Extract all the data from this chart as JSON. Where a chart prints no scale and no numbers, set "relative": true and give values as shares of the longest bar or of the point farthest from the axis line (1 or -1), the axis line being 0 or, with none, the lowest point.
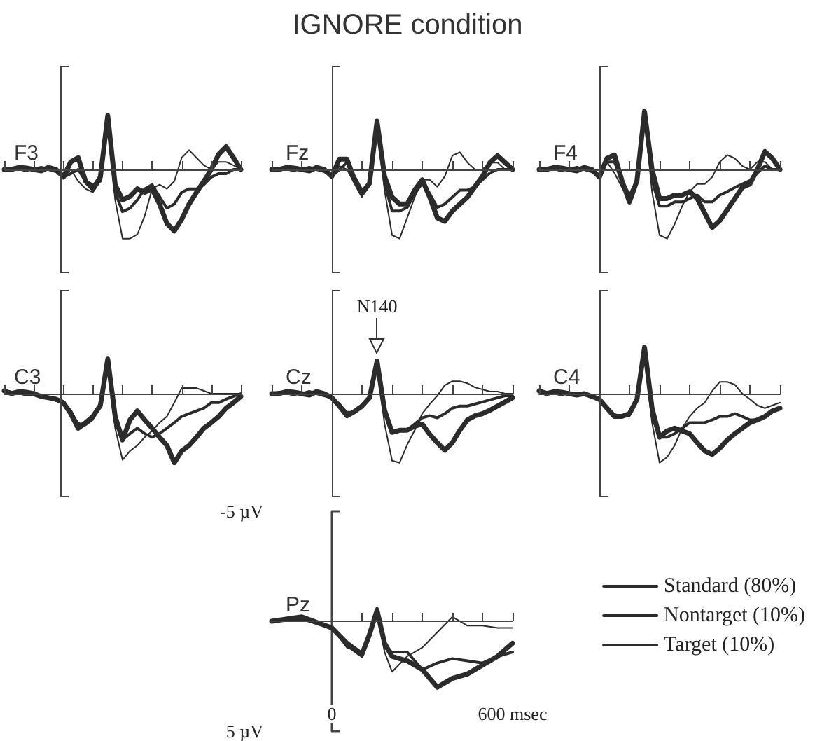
{
  "chart_data": [
    {
      "type": "other",
      "title": "IGNORE condition"
    },
    {
      "type": "line",
      "title": "F3",
      "marker": "none",
      "relative": true,
      "categories": [
        null,
        null,
        null,
        null,
        null,
        null,
        null,
        null,
        null,
        null,
        null,
        null,
        null,
        null,
        null,
        null,
        null,
        null,
        null,
        null,
        null,
        null,
        null,
        null,
        null,
        null,
        null,
        null,
        null,
        null,
        null,
        null,
        null
      ],
      "series": [
        {
          "color": "#2b2b2b",
          "values": [
            0,
            0.03,
            0,
            -0.03,
            0.02,
            0,
            0.03,
            -0.02,
            -0.11,
            0,
            -0.17,
            -0.28,
            -0.33,
            -0.17,
            0.67,
            -0.44,
            -1,
            -1,
            -0.94,
            -0.67,
            -0.28,
            -0.22,
            -0.28,
            -0.17,
            0.17,
            0.28,
            0.17,
            0.06,
            0,
            0.11,
            0.11,
            0.06,
            0
          ]
        },
        {
          "color": "#2b2b2b",
          "values": [
            0,
            0.02,
            0.03,
            0,
            0,
            0.03,
            0,
            -0.03,
            -0.11,
            -0.06,
            0,
            -0.17,
            -0.22,
            -0.17,
            0.72,
            -0.33,
            -0.61,
            -0.56,
            -0.44,
            -0.28,
            -0.22,
            -0.39,
            -0.56,
            -0.5,
            -0.33,
            -0.28,
            -0.28,
            -0.22,
            -0.11,
            -0.06,
            -0.06,
            0,
            0
          ]
        },
        {
          "color": "#2b2b2b",
          "values": [
            0,
            0,
            0.03,
            0.02,
            0,
            -0.02,
            0.03,
            0,
            -0.11,
            0.11,
            0.17,
            -0.17,
            -0.28,
            -0.11,
            0.78,
            -0.22,
            -0.44,
            -0.39,
            -0.28,
            -0.33,
            -0.28,
            -0.5,
            -0.78,
            -0.89,
            -0.72,
            -0.5,
            -0.33,
            -0.17,
            0,
            0.22,
            0.33,
            0.17,
            0
          ]
        }
      ]
    },
    {
      "type": "line",
      "title": "Fz",
      "marker": "none",
      "relative": true,
      "categories": [
        null,
        null,
        null,
        null,
        null,
        null,
        null,
        null,
        null,
        null,
        null,
        null,
        null,
        null,
        null,
        null,
        null,
        null,
        null,
        null,
        null,
        null,
        null,
        null,
        null,
        null,
        null,
        null,
        null,
        null,
        null,
        null,
        null
      ],
      "series": [
        {
          "color": "#2b2b2b",
          "values": [
            0,
            0.03,
            0,
            -0.03,
            0.02,
            0,
            0.03,
            -0.02,
            -0.1,
            0.05,
            0,
            -0.2,
            -0.4,
            -0.15,
            0.65,
            -0.3,
            -0.95,
            -1,
            -0.7,
            -0.4,
            -0.15,
            -0.15,
            -0.25,
            -0.1,
            0.2,
            0.25,
            0.1,
            0,
            0,
            0.1,
            0.1,
            0,
            0
          ]
        },
        {
          "color": "#2b2b2b",
          "values": [
            0,
            0.02,
            0.03,
            0,
            0,
            0.03,
            0,
            -0.03,
            -0.1,
            0,
            0.1,
            -0.1,
            -0.3,
            -0.2,
            0.65,
            -0.2,
            -0.6,
            -0.6,
            -0.55,
            -0.35,
            -0.2,
            -0.35,
            -0.55,
            -0.5,
            -0.4,
            -0.3,
            -0.3,
            -0.25,
            -0.15,
            -0.05,
            0,
            0,
            0
          ]
        },
        {
          "color": "#2b2b2b",
          "values": [
            0,
            0,
            0.03,
            0.02,
            0,
            -0.02,
            0.03,
            0,
            -0.1,
            0.15,
            0.15,
            -0.15,
            -0.35,
            -0.2,
            0.7,
            -0.1,
            -0.4,
            -0.5,
            -0.5,
            -0.3,
            -0.15,
            -0.4,
            -0.7,
            -0.75,
            -0.6,
            -0.5,
            -0.4,
            -0.25,
            -0.1,
            0.1,
            0.2,
            0.1,
            0
          ]
        }
      ]
    },
    {
      "type": "line",
      "title": "F4",
      "marker": "none",
      "relative": true,
      "categories": [
        null,
        null,
        null,
        null,
        null,
        null,
        null,
        null,
        null,
        null,
        null,
        null,
        null,
        null,
        null,
        null,
        null,
        null,
        null,
        null,
        null,
        null,
        null,
        null,
        null,
        null,
        null,
        null,
        null,
        null,
        null,
        null,
        null
      ],
      "series": [
        {
          "color": "#2b2b2b",
          "values": [
            0,
            0.03,
            0,
            -0.03,
            0.02,
            0,
            0.03,
            -0.02,
            -0.11,
            0.11,
            -0.05,
            -0.26,
            -0.42,
            -0.11,
            0.79,
            -0.32,
            -0.95,
            -1,
            -0.79,
            -0.53,
            -0.32,
            -0.21,
            -0.21,
            -0.11,
            0.11,
            0.21,
            0.16,
            0.05,
            0,
            0.11,
            0.11,
            0,
            0
          ]
        },
        {
          "color": "#2b2b2b",
          "values": [
            0,
            0.02,
            0.03,
            0,
            0,
            0.03,
            0,
            -0.03,
            -0.11,
            0.11,
            0.11,
            -0.16,
            -0.37,
            -0.16,
            0.79,
            -0.16,
            -0.53,
            -0.53,
            -0.47,
            -0.47,
            -0.42,
            -0.37,
            -0.47,
            -0.47,
            -0.37,
            -0.32,
            -0.26,
            -0.21,
            -0.16,
            -0.05,
            0.05,
            0,
            0
          ]
        },
        {
          "color": "#2b2b2b",
          "values": [
            0,
            0,
            0.03,
            0.02,
            0,
            -0.02,
            0.03,
            0,
            -0.11,
            0.16,
            0.21,
            -0.16,
            -0.47,
            -0.16,
            0.84,
            0,
            -0.42,
            -0.42,
            -0.37,
            -0.37,
            -0.32,
            -0.42,
            -0.63,
            -0.84,
            -0.74,
            -0.58,
            -0.42,
            -0.26,
            -0.21,
            0,
            0.26,
            0.16,
            0
          ]
        }
      ]
    },
    {
      "type": "line",
      "title": "C3",
      "marker": "none",
      "relative": true,
      "categories": [
        null,
        null,
        null,
        null,
        null,
        null,
        null,
        null,
        null,
        null,
        null,
        null,
        null,
        null,
        null,
        null,
        null,
        null,
        null,
        null,
        null,
        null,
        null,
        null,
        null,
        null,
        null,
        null,
        null,
        null,
        null,
        null,
        null
      ],
      "series": [
        {
          "color": "#2b2b2b",
          "values": [
            0.04,
            0.03,
            0,
            -0.03,
            0,
            -0.04,
            -0.06,
            -0.08,
            -0.13,
            -0.25,
            -0.42,
            -0.46,
            -0.38,
            -0.13,
            0.5,
            -0.5,
            -0.96,
            -0.83,
            -0.75,
            -0.63,
            -0.54,
            -0.42,
            -0.33,
            -0.13,
            0.08,
            0.08,
            0.08,
            0.04,
            0,
            0,
            0,
            0,
            0
          ]
        },
        {
          "color": "#2b2b2b",
          "values": [
            0.04,
            0.02,
            0.03,
            0,
            -0.02,
            -0.04,
            -0.06,
            -0.1,
            -0.13,
            -0.25,
            -0.46,
            -0.42,
            -0.33,
            -0.17,
            0.46,
            -0.42,
            -0.67,
            -0.58,
            -0.5,
            -0.58,
            -0.63,
            -0.58,
            -0.5,
            -0.42,
            -0.33,
            -0.29,
            -0.25,
            -0.21,
            -0.13,
            -0.13,
            -0.08,
            -0.04,
            0
          ]
        },
        {
          "color": "#2b2b2b",
          "values": [
            0.04,
            0,
            0.03,
            0.02,
            0,
            -0.04,
            -0.06,
            -0.08,
            -0.13,
            -0.29,
            -0.5,
            -0.42,
            -0.33,
            -0.17,
            0.5,
            -0.33,
            -0.67,
            -0.38,
            -0.25,
            -0.38,
            -0.5,
            -0.63,
            -0.75,
            -1,
            -0.83,
            -0.75,
            -0.63,
            -0.5,
            -0.42,
            -0.33,
            -0.21,
            -0.13,
            -0.04
          ]
        }
      ]
    },
    {
      "type": "line",
      "title": "Cz",
      "marker": "none",
      "relative": true,
      "annotations": [
        "N140"
      ],
      "categories": [
        null,
        null,
        null,
        null,
        null,
        null,
        null,
        null,
        null,
        null,
        null,
        null,
        null,
        null,
        null,
        null,
        null,
        null,
        null,
        null,
        null,
        null,
        null,
        null,
        null,
        null,
        null,
        null,
        null,
        null,
        null,
        null,
        null
      ],
      "series": [
        {
          "color": "#2b2b2b",
          "values": [
            0,
            0.03,
            0,
            -0.03,
            0.02,
            0,
            0.03,
            -0.02,
            -0.06,
            -0.15,
            -0.26,
            -0.26,
            -0.21,
            -0.06,
            0.41,
            -0.44,
            -0.97,
            -1,
            -0.74,
            -0.53,
            -0.29,
            -0.15,
            -0.03,
            0.12,
            0.18,
            0.18,
            0.15,
            0.09,
            0.06,
            0.03,
            0.03,
            0,
            0
          ]
        },
        {
          "color": "#2b2b2b",
          "values": [
            0,
            0.02,
            0.03,
            0,
            0,
            0.03,
            0,
            -0.03,
            -0.06,
            -0.15,
            -0.29,
            -0.26,
            -0.18,
            -0.06,
            0.41,
            -0.29,
            -0.53,
            -0.53,
            -0.53,
            -0.44,
            -0.35,
            -0.32,
            -0.35,
            -0.29,
            -0.21,
            -0.18,
            -0.18,
            -0.15,
            -0.12,
            -0.09,
            -0.06,
            -0.03,
            -0.03
          ]
        },
        {
          "color": "#2b2b2b",
          "values": [
            0,
            0,
            0.03,
            0.02,
            0,
            -0.02,
            0.03,
            0,
            -0.06,
            -0.18,
            -0.32,
            -0.26,
            -0.18,
            -0.06,
            0.47,
            -0.24,
            -0.56,
            -0.53,
            -0.53,
            -0.47,
            -0.44,
            -0.59,
            -0.71,
            -0.82,
            -0.71,
            -0.53,
            -0.38,
            -0.32,
            -0.29,
            -0.24,
            -0.18,
            -0.12,
            -0.06
          ]
        }
      ]
    },
    {
      "type": "line",
      "title": "C4",
      "marker": "none",
      "relative": true,
      "categories": [
        null,
        null,
        null,
        null,
        null,
        null,
        null,
        null,
        null,
        null,
        null,
        null,
        null,
        null,
        null,
        null,
        null,
        null,
        null,
        null,
        null,
        null,
        null,
        null,
        null,
        null,
        null,
        null,
        null,
        null,
        null,
        null,
        null
      ],
      "series": [
        {
          "color": "#2b2b2b",
          "values": [
            0.04,
            0.03,
            0,
            -0.03,
            0.02,
            0,
            0,
            -0.04,
            -0.08,
            -0.21,
            -0.29,
            -0.33,
            -0.33,
            -0.08,
            0.63,
            -0.42,
            -1,
            -0.92,
            -0.75,
            -0.5,
            -0.33,
            -0.21,
            -0.13,
            0.04,
            0.17,
            0.17,
            0.13,
            0,
            -0.08,
            -0.17,
            -0.21,
            -0.17,
            -0.13
          ]
        },
        {
          "color": "#2b2b2b",
          "values": [
            0.04,
            0.02,
            0.03,
            0,
            0,
            0,
            -0.02,
            -0.04,
            -0.08,
            -0.21,
            -0.33,
            -0.33,
            -0.29,
            -0.08,
            0.63,
            -0.33,
            -0.63,
            -0.63,
            -0.58,
            -0.5,
            -0.42,
            -0.42,
            -0.42,
            -0.38,
            -0.33,
            -0.33,
            -0.29,
            -0.33,
            -0.38,
            -0.38,
            -0.33,
            -0.25,
            -0.21
          ]
        },
        {
          "color": "#2b2b2b",
          "values": [
            0.04,
            0,
            0.03,
            0.02,
            0,
            -0.02,
            0,
            -0.04,
            -0.08,
            -0.21,
            -0.33,
            -0.33,
            -0.29,
            -0.08,
            0.67,
            -0.21,
            -0.63,
            -0.54,
            -0.5,
            -0.54,
            -0.58,
            -0.71,
            -0.83,
            -0.88,
            -0.79,
            -0.67,
            -0.58,
            -0.5,
            -0.42,
            -0.38,
            -0.33,
            -0.25,
            -0.21
          ]
        }
      ]
    },
    {
      "type": "line",
      "title": "Pz",
      "marker": "none",
      "legend": "right",
      "xlim": [
        -200,
        600
      ],
      "ylim": [
        5,
        -5
      ],
      "xticks": [
        0,
        {
          "value": 100,
          "label": null
        },
        {
          "value": 200,
          "label": null
        },
        {
          "value": 300,
          "label": null
        },
        {
          "value": 400,
          "label": null
        },
        {
          "value": 500,
          "label": null
        },
        {
          "value": 600,
          "label": "600 msec"
        }
      ],
      "yticks": [
        {
          "value": -5,
          "label": "-5 µV"
        },
        {
          "value": 5,
          "label": "5 µV"
        }
      ],
      "x": [
        -200,
        -100,
        0,
        50,
        100,
        125,
        150,
        175,
        200,
        250,
        300,
        350,
        400,
        450,
        500,
        550,
        600
      ],
      "series": [
        {
          "name": "Standard (80%)",
          "color": "#2b2b2b",
          "values": [
            0,
            -0.1,
            0.3,
            1.2,
            1.4,
            0.7,
            -0.6,
            1.4,
            2.3,
            1.6,
            1.2,
            0.5,
            -0.2,
            0.2,
            0.2,
            0.3,
            0.3
          ]
        },
        {
          "name": "Nontarget (10%)",
          "color": "#2b2b2b",
          "values": [
            0,
            -0.1,
            0.3,
            1.1,
            1.6,
            0.7,
            -0.6,
            1.2,
            1.4,
            1.4,
            2.2,
            1.9,
            1.7,
            1.8,
            1.9,
            1.6,
            1.4
          ]
        },
        {
          "name": "Target (10%)",
          "color": "#2b2b2b",
          "values": [
            0,
            -0.2,
            0.3,
            1.0,
            1.5,
            0.6,
            -0.5,
            1.0,
            1.6,
            1.8,
            2.2,
            3.0,
            2.6,
            2.4,
            2.0,
            1.6,
            1.0
          ]
        }
      ]
    }
  ]
}
